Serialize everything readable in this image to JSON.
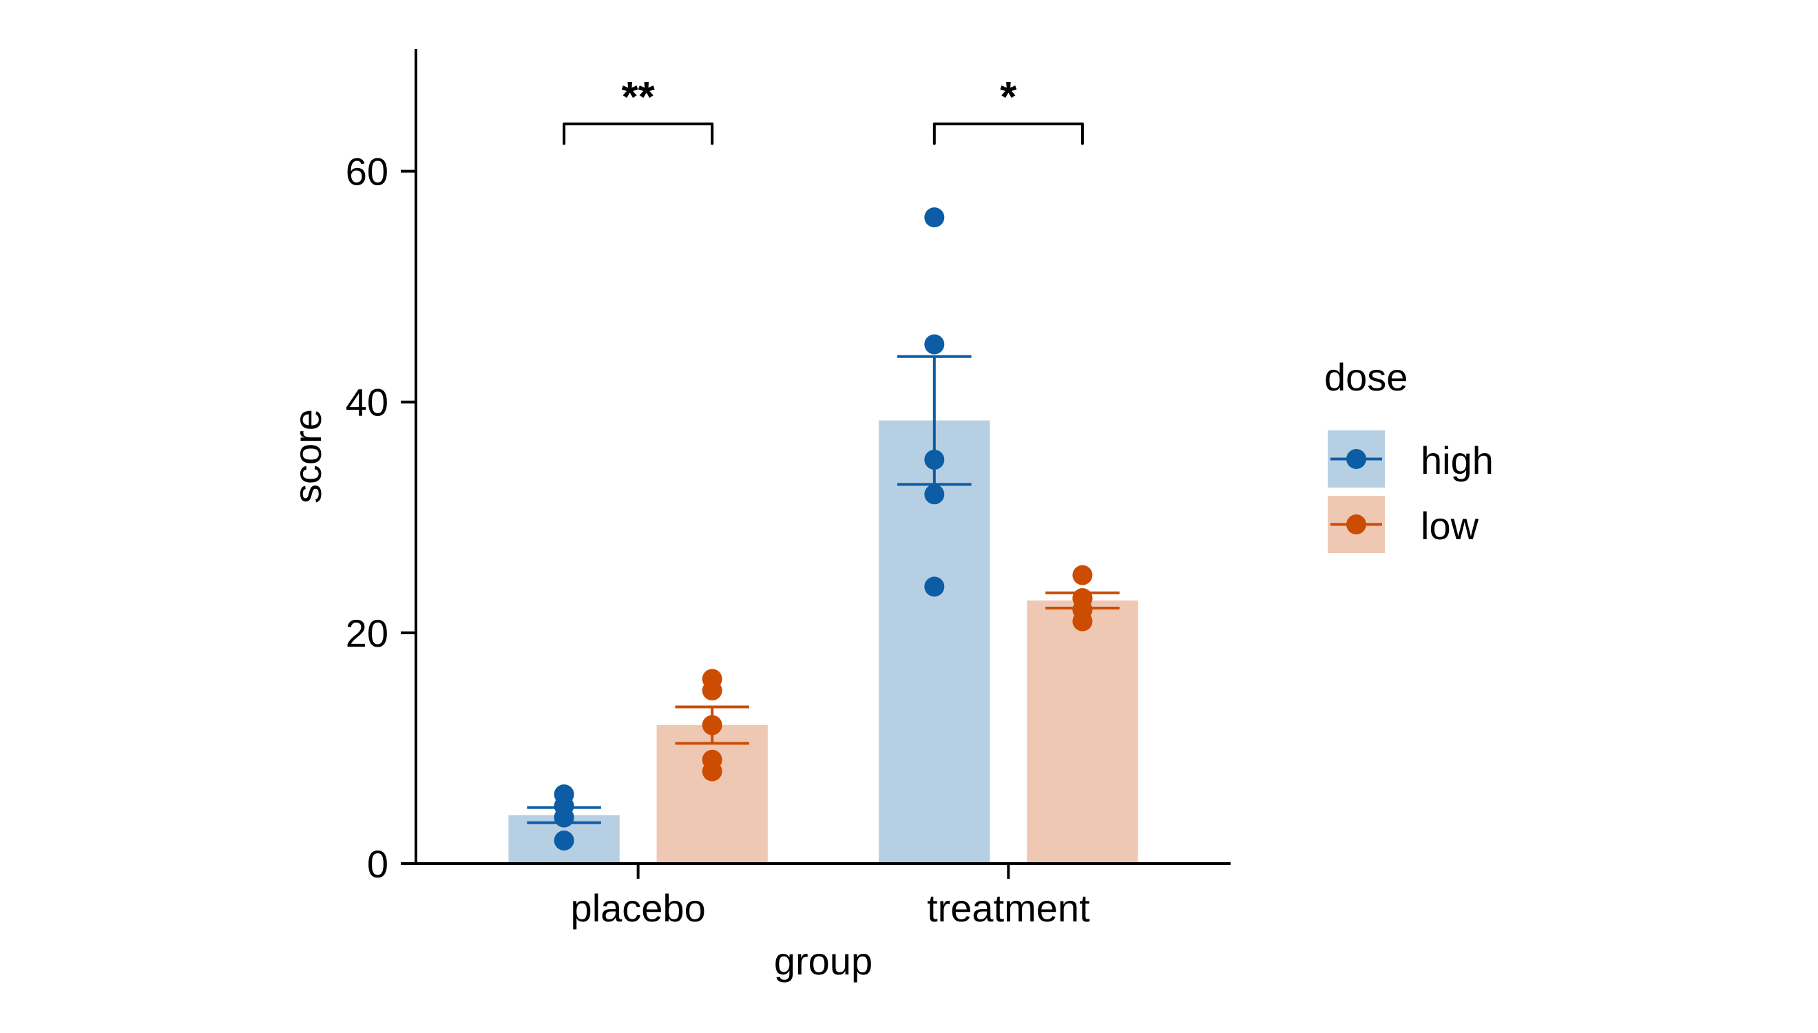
{
  "chart_data": {
    "type": "bar",
    "title": "",
    "xlabel": "group",
    "ylabel": "score",
    "categories": [
      "placebo",
      "treatment"
    ],
    "ylim": [
      0,
      70.6
    ],
    "xlim": [
      0.4,
      2.6
    ],
    "yticks": [
      0,
      20,
      40,
      60
    ],
    "grid": false,
    "error_bars": "mean ± SE",
    "series": [
      {
        "name": "high",
        "color": "#0C5DA5",
        "bar_fill": "#B7CFE3",
        "values": [
          4.2,
          38.4
        ],
        "se": [
          0.66,
          5.54
        ],
        "points": [
          [
            6,
            5,
            4,
            4,
            2
          ],
          [
            56,
            45,
            35,
            32,
            24
          ]
        ]
      },
      {
        "name": "low",
        "color": "#CC4C02",
        "bar_fill": "#EFC8B4",
        "values": [
          12.0,
          22.8
        ],
        "se": [
          1.58,
          0.66
        ],
        "points": [
          [
            16,
            15,
            12,
            9,
            8
          ],
          [
            25,
            23,
            23,
            22,
            21
          ]
        ]
      }
    ],
    "legend": {
      "title": "dose",
      "position": "right",
      "entries": [
        "high",
        "low"
      ]
    },
    "annotations": [
      {
        "category": "placebo",
        "label": "**",
        "from": "high",
        "to": "low",
        "y": 64.1,
        "tip": 62.4
      },
      {
        "category": "treatment",
        "label": "*",
        "from": "high",
        "to": "low",
        "y": 64.1,
        "tip": 62.4
      }
    ]
  }
}
